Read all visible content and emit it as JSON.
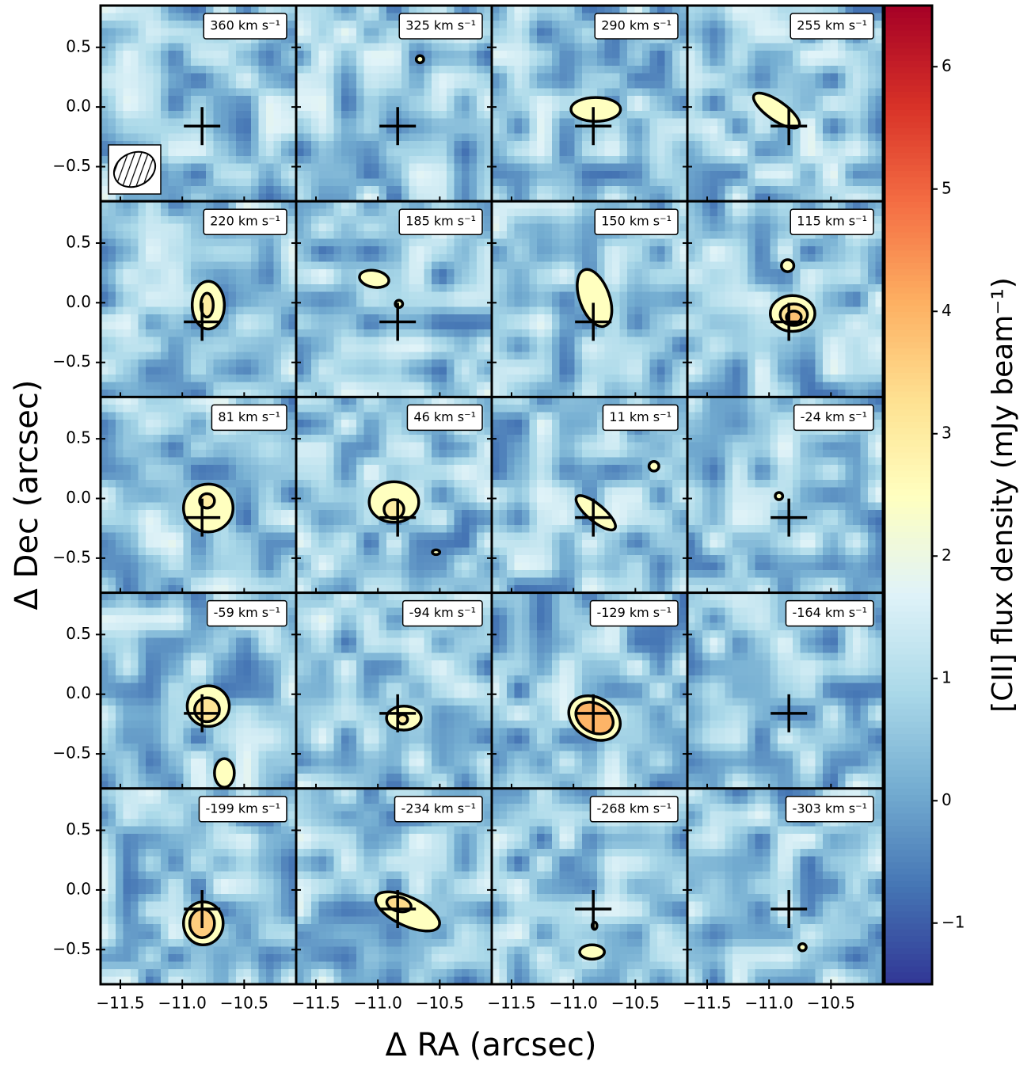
{
  "chart_data": {
    "type": "channel-map",
    "xlabel": "Δ RA (arcsec)",
    "ylabel": "Δ Dec (arcsec)",
    "colorbar_label": "[CII] flux density (mJy beam⁻¹)",
    "xlim": [
      -11.66,
      -10.08
    ],
    "ylim": [
      -0.79,
      0.85
    ],
    "xticks": [
      {
        "value": -11.5,
        "label": "−11.5"
      },
      {
        "value": -11.0,
        "label": "−11.0"
      },
      {
        "value": -10.5,
        "label": "−10.5"
      }
    ],
    "yticks": [
      {
        "value": 0.5,
        "label": "0.5"
      },
      {
        "value": 0.0,
        "label": "0.0"
      },
      {
        "value": -0.5,
        "label": "−0.5"
      }
    ],
    "clim": [
      -1.5,
      6.5
    ],
    "cticks": [
      {
        "value": -1,
        "label": "−1"
      },
      0,
      1,
      2,
      3,
      4,
      5,
      6
    ],
    "colormap": [
      "#313695",
      "#4575b4",
      "#74add1",
      "#abd9e9",
      "#e0f3f8",
      "#ffffbf",
      "#fee090",
      "#fdae61",
      "#f46d43",
      "#d73027",
      "#a50026"
    ],
    "marker": {
      "x": -10.84,
      "y": -0.16
    },
    "panels": [
      {
        "label": "360 km s⁻¹",
        "contours": []
      },
      {
        "label": "325 km s⁻¹",
        "contours": [
          {
            "x": -10.66,
            "y": 0.4,
            "rx": 0.03,
            "ry": 0.03,
            "angle": 0,
            "level": 2.5
          }
        ]
      },
      {
        "label": "290 km s⁻¹",
        "contours": [
          {
            "x": -10.82,
            "y": -0.02,
            "rx": 0.2,
            "ry": 0.1,
            "angle": 0,
            "level": 2.5
          }
        ]
      },
      {
        "label": "255 km s⁻¹",
        "contours": [
          {
            "x": -10.94,
            "y": -0.03,
            "rx": 0.22,
            "ry": 0.08,
            "angle": 35,
            "level": 2.5
          }
        ]
      },
      {
        "label": "220 km s⁻¹",
        "contours": [
          {
            "x": -10.79,
            "y": -0.02,
            "rx": 0.13,
            "ry": 0.2,
            "angle": 0,
            "level": 2.5
          },
          {
            "x": -10.8,
            "y": -0.02,
            "rx": 0.05,
            "ry": 0.1,
            "angle": 0,
            "level": 3.0
          }
        ]
      },
      {
        "label": "185 km s⁻¹",
        "contours": [
          {
            "x": -11.03,
            "y": 0.2,
            "rx": 0.12,
            "ry": 0.07,
            "angle": 10,
            "level": 2.5
          },
          {
            "x": -10.83,
            "y": -0.01,
            "rx": 0.03,
            "ry": 0.03,
            "angle": 0,
            "level": 2.5
          }
        ]
      },
      {
        "label": "150 km s⁻¹",
        "contours": [
          {
            "x": -10.83,
            "y": 0.04,
            "rx": 0.12,
            "ry": 0.25,
            "angle": -20,
            "level": 2.5
          }
        ]
      },
      {
        "label": "115 km s⁻¹",
        "contours": [
          {
            "x": -10.85,
            "y": 0.31,
            "rx": 0.05,
            "ry": 0.05,
            "angle": 0,
            "level": 2.5
          },
          {
            "x": -10.81,
            "y": -0.09,
            "rx": 0.18,
            "ry": 0.15,
            "angle": 0,
            "level": 2.5
          },
          {
            "x": -10.8,
            "y": -0.1,
            "rx": 0.11,
            "ry": 0.09,
            "angle": 0,
            "level": 3.2
          },
          {
            "x": -10.8,
            "y": -0.12,
            "rx": 0.06,
            "ry": 0.05,
            "angle": 0,
            "level": 3.8
          }
        ]
      },
      {
        "label": "81 km s⁻¹",
        "contours": [
          {
            "x": -10.79,
            "y": -0.08,
            "rx": 0.2,
            "ry": 0.2,
            "angle": 0,
            "level": 2.5
          },
          {
            "x": -10.8,
            "y": -0.02,
            "rx": 0.06,
            "ry": 0.06,
            "angle": 0,
            "level": 3.0
          }
        ]
      },
      {
        "label": "46 km s⁻¹",
        "contours": [
          {
            "x": -10.87,
            "y": -0.03,
            "rx": 0.2,
            "ry": 0.17,
            "angle": 0,
            "level": 2.5
          },
          {
            "x": -10.87,
            "y": -0.09,
            "rx": 0.08,
            "ry": 0.08,
            "angle": 0,
            "level": 3.0
          },
          {
            "x": -10.53,
            "y": -0.45,
            "rx": 0.03,
            "ry": 0.02,
            "angle": 0,
            "level": 2.5
          }
        ]
      },
      {
        "label": "11 km s⁻¹",
        "contours": [
          {
            "x": -10.82,
            "y": -0.12,
            "rx": 0.2,
            "ry": 0.07,
            "angle": 40,
            "level": 2.5
          },
          {
            "x": -10.35,
            "y": 0.27,
            "rx": 0.04,
            "ry": 0.04,
            "angle": 0,
            "level": 2.5
          }
        ]
      },
      {
        "label": "-24 km s⁻¹",
        "contours": [
          {
            "x": -10.92,
            "y": 0.02,
            "rx": 0.03,
            "ry": 0.03,
            "angle": 0,
            "level": 2.5
          }
        ]
      },
      {
        "label": "-59 km s⁻¹",
        "contours": [
          {
            "x": -10.79,
            "y": -0.1,
            "rx": 0.17,
            "ry": 0.17,
            "angle": 0,
            "level": 2.5
          },
          {
            "x": -10.8,
            "y": -0.13,
            "rx": 0.1,
            "ry": 0.1,
            "angle": 0,
            "level": 3.2
          },
          {
            "x": -10.66,
            "y": -0.66,
            "rx": 0.08,
            "ry": 0.12,
            "angle": 0,
            "level": 2.5
          }
        ]
      },
      {
        "label": "-94 km s⁻¹",
        "contours": [
          {
            "x": -10.79,
            "y": -0.2,
            "rx": 0.14,
            "ry": 0.1,
            "angle": 0,
            "level": 2.5
          },
          {
            "x": -10.8,
            "y": -0.21,
            "rx": 0.04,
            "ry": 0.04,
            "angle": 0,
            "level": 3.0
          }
        ]
      },
      {
        "label": "-129 km s⁻¹",
        "contours": [
          {
            "x": -10.83,
            "y": -0.2,
            "rx": 0.22,
            "ry": 0.17,
            "angle": 30,
            "level": 2.5
          },
          {
            "x": -10.83,
            "y": -0.2,
            "rx": 0.16,
            "ry": 0.12,
            "angle": 30,
            "level": 4.0
          }
        ]
      },
      {
        "label": "-164 km s⁻¹",
        "contours": []
      },
      {
        "label": "-199 km s⁻¹",
        "contours": [
          {
            "x": -10.83,
            "y": -0.28,
            "rx": 0.16,
            "ry": 0.18,
            "angle": 0,
            "level": 2.5
          },
          {
            "x": -10.84,
            "y": -0.28,
            "rx": 0.1,
            "ry": 0.12,
            "angle": 0,
            "level": 3.6
          }
        ]
      },
      {
        "label": "-234 km s⁻¹",
        "contours": [
          {
            "x": -10.76,
            "y": -0.18,
            "rx": 0.28,
            "ry": 0.12,
            "angle": 25,
            "level": 2.5
          },
          {
            "x": -10.83,
            "y": -0.12,
            "rx": 0.1,
            "ry": 0.06,
            "angle": 15,
            "level": 3.4
          }
        ]
      },
      {
        "label": "-268 km s⁻¹",
        "contours": [
          {
            "x": -10.85,
            "y": -0.52,
            "rx": 0.1,
            "ry": 0.06,
            "angle": 0,
            "level": 2.5
          },
          {
            "x": -10.83,
            "y": -0.3,
            "rx": 0.02,
            "ry": 0.03,
            "angle": 0,
            "level": 2.5
          }
        ]
      },
      {
        "label": "-303 km s⁻¹",
        "contours": [
          {
            "x": -10.73,
            "y": -0.48,
            "rx": 0.03,
            "ry": 0.03,
            "angle": 0,
            "level": 2.5
          }
        ]
      }
    ]
  }
}
